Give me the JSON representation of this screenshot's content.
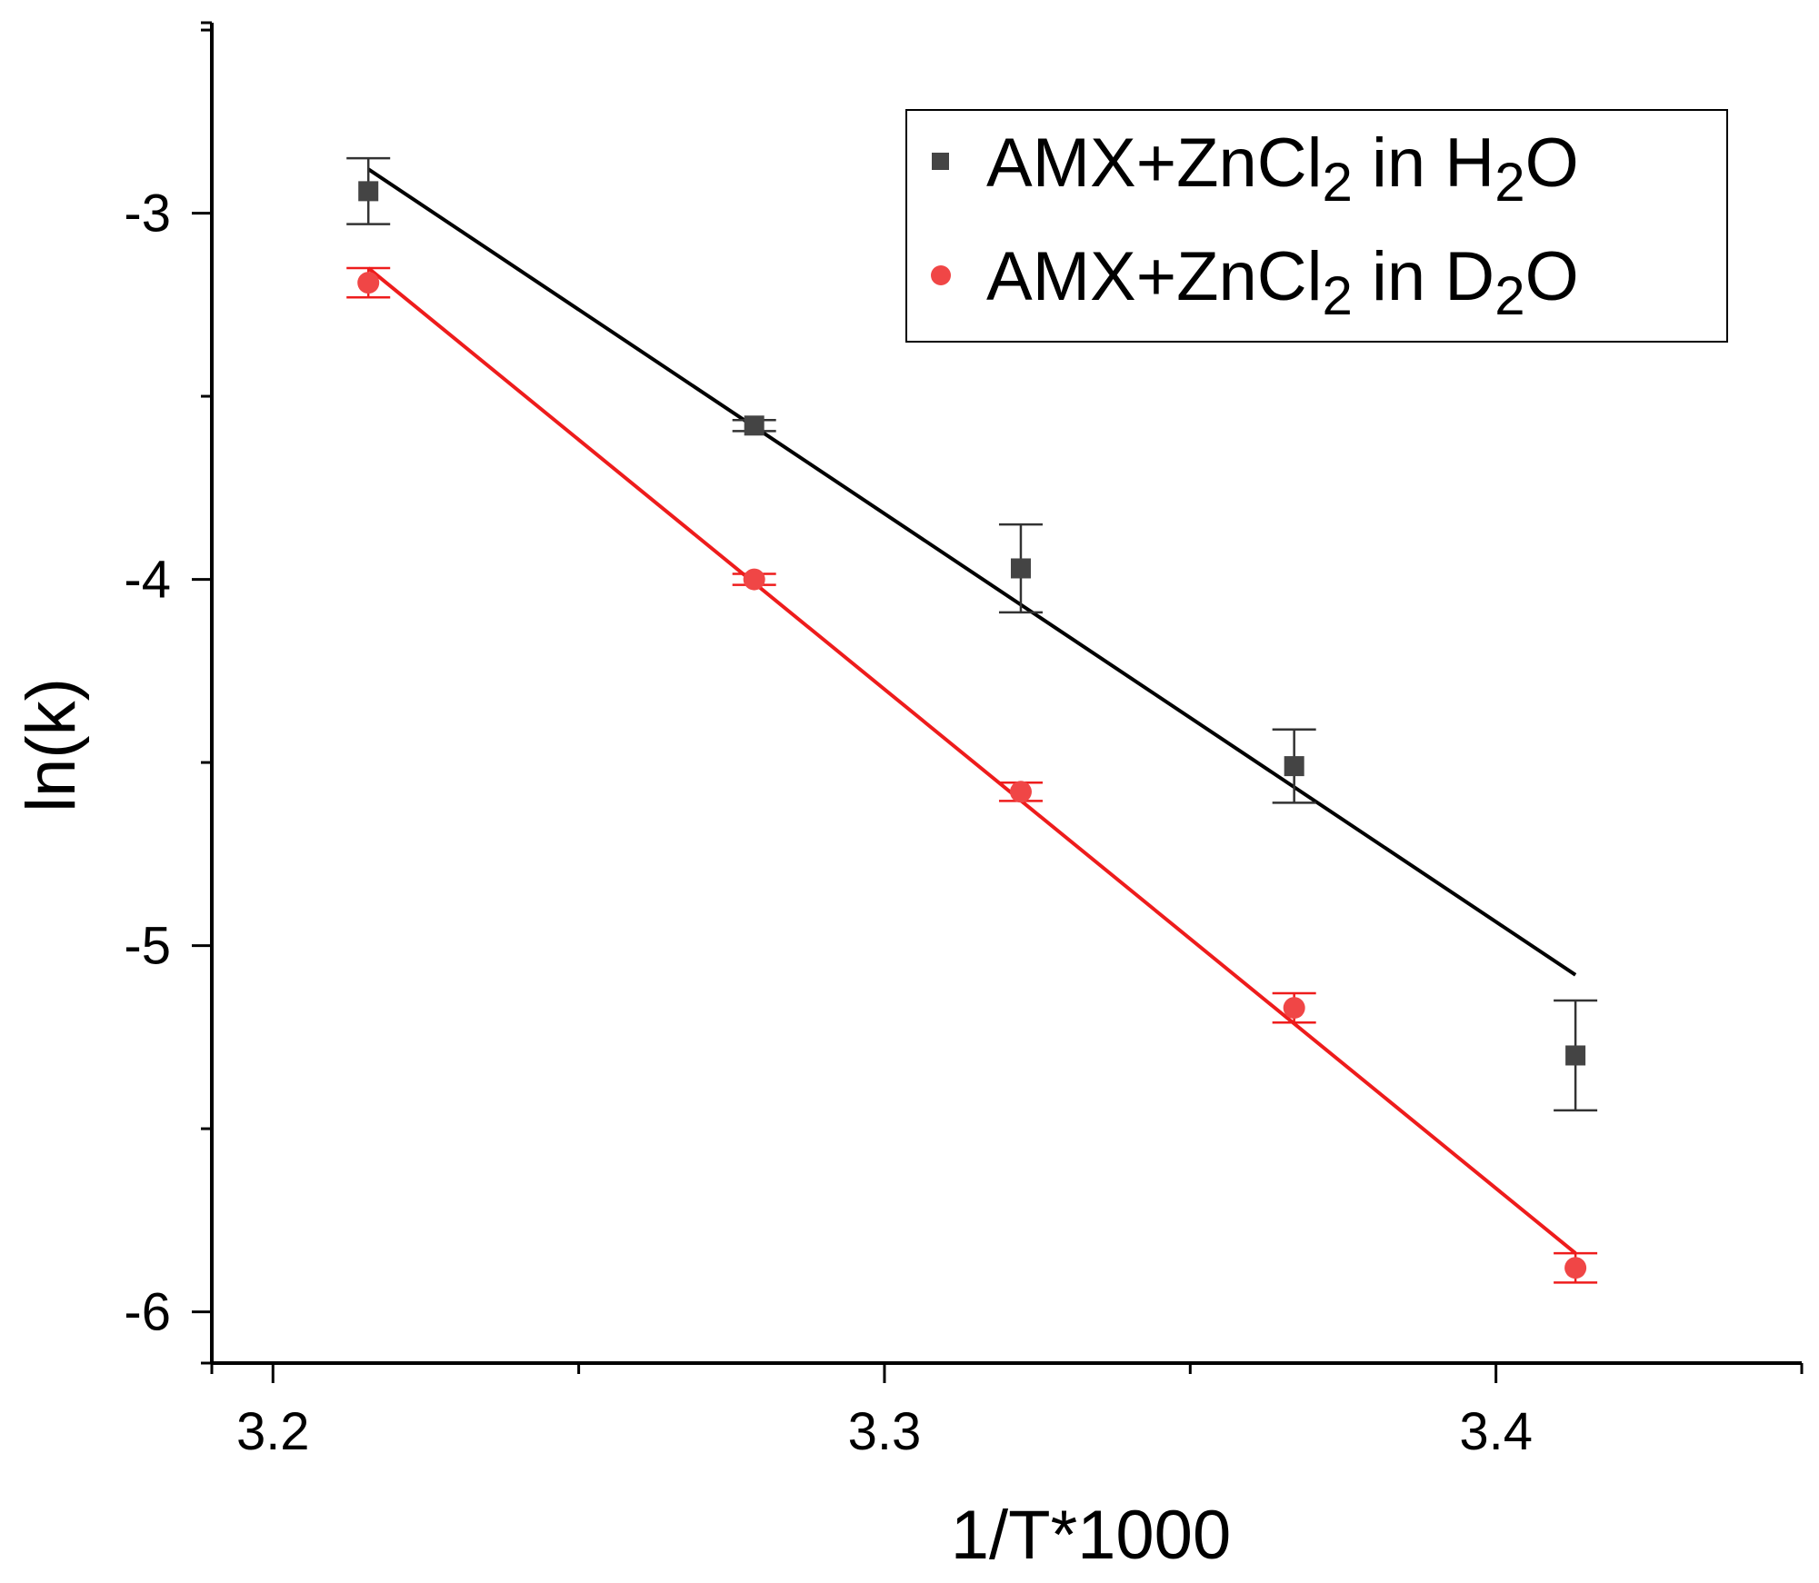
{
  "chart_data": {
    "type": "scatter",
    "title": "",
    "xlabel": "1/T*1000",
    "ylabel": "ln(k)",
    "xlim": [
      3.19,
      3.45
    ],
    "ylim": [
      -6.14,
      -2.48
    ],
    "xticks": [
      3.2,
      3.3,
      3.4
    ],
    "yticks": [
      -3,
      -4,
      -5,
      -6
    ],
    "x_tick_labels": [
      "3.2",
      "3.3",
      "3.4"
    ],
    "y_tick_labels": [
      "-3",
      "-4",
      "-5",
      "-6"
    ],
    "grid": false,
    "legend_position": "top-right",
    "series": [
      {
        "name_parts": [
          "AMX+ZnCl",
          "2",
          " in H",
          "2",
          "O"
        ],
        "marker": "square",
        "color": "#444444",
        "line_color": "#000000",
        "x": [
          3.2156,
          3.2787,
          3.3223,
          3.367,
          3.413
        ],
        "y": [
          -2.94,
          -3.58,
          -3.97,
          -4.51,
          -5.3
        ],
        "yerr": [
          0.09,
          0.015,
          0.12,
          0.1,
          0.15
        ],
        "fit": {
          "x": [
            3.2156,
            3.413
          ],
          "y": [
            -2.88,
            -5.08
          ]
        }
      },
      {
        "name_parts": [
          "AMX+ZnCl",
          "2",
          " in D",
          "2",
          "O"
        ],
        "marker": "circle",
        "color": "#f04646",
        "line_color": "#ee1c1c",
        "x": [
          3.2156,
          3.2787,
          3.3223,
          3.367,
          3.413
        ],
        "y": [
          -3.19,
          -4.0,
          -4.58,
          -5.17,
          -5.88
        ],
        "yerr": [
          0.04,
          0.015,
          0.025,
          0.04,
          0.04
        ],
        "fit": {
          "x": [
            3.2156,
            3.413
          ],
          "y": [
            -3.15,
            -5.84
          ]
        }
      }
    ]
  }
}
